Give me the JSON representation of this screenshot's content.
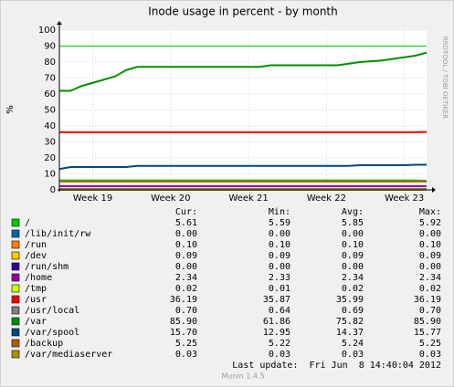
{
  "chart_data": {
    "type": "line",
    "title": "Inode usage in percent - by month",
    "y_label": "%",
    "side_label": "RRDTOOL / TOBI OETIKER",
    "x": [
      0,
      1,
      2,
      3,
      5,
      6,
      7,
      18,
      19,
      25,
      26,
      27,
      29,
      30,
      31,
      32,
      33
    ],
    "xlim": [
      0,
      33
    ],
    "xticks": [
      {
        "value": 3,
        "label": "Week 19"
      },
      {
        "value": 10,
        "label": "Week 20"
      },
      {
        "value": 17,
        "label": "Week 21"
      },
      {
        "value": 24,
        "label": "Week 22"
      },
      {
        "value": 31,
        "label": "Week 23"
      }
    ],
    "ylim": [
      0,
      100
    ],
    "yticks": [
      0,
      10,
      20,
      30,
      40,
      50,
      60,
      70,
      80,
      90,
      100
    ],
    "grid": true,
    "threshold_lines": [
      {
        "value": 90,
        "color": "#00cc00"
      }
    ],
    "stat_headers": [
      "Cur:",
      "Min:",
      "Avg:",
      "Max:"
    ],
    "series": [
      {
        "name": "/",
        "color": "#00cc00",
        "values": [
          5.9,
          5.9,
          5.9,
          5.9,
          5.9,
          5.9,
          5.9,
          5.9,
          5.9,
          5.9,
          5.9,
          5.9,
          5.9,
          5.9,
          5.9,
          5.9,
          5.61
        ],
        "stats": [
          "5.61",
          "5.59",
          "5.85",
          "5.92"
        ]
      },
      {
        "name": "/lib/init/rw",
        "color": "#0066b3",
        "values": [
          0,
          0,
          0,
          0,
          0,
          0,
          0,
          0,
          0,
          0,
          0,
          0,
          0,
          0,
          0,
          0,
          0
        ],
        "stats": [
          "0.00",
          "0.00",
          "0.00",
          "0.00"
        ]
      },
      {
        "name": "/run",
        "color": "#ff8000",
        "values": [
          0.1,
          0.1,
          0.1,
          0.1,
          0.1,
          0.1,
          0.1,
          0.1,
          0.1,
          0.1,
          0.1,
          0.1,
          0.1,
          0.1,
          0.1,
          0.1,
          0.1
        ],
        "stats": [
          "0.10",
          "0.10",
          "0.10",
          "0.10"
        ]
      },
      {
        "name": "/dev",
        "color": "#ffcc00",
        "values": [
          0.09,
          0.09,
          0.09,
          0.09,
          0.09,
          0.09,
          0.09,
          0.09,
          0.09,
          0.09,
          0.09,
          0.09,
          0.09,
          0.09,
          0.09,
          0.09,
          0.09
        ],
        "stats": [
          "0.09",
          "0.09",
          "0.09",
          "0.09"
        ]
      },
      {
        "name": "/run/shm",
        "color": "#330099",
        "values": [
          0,
          0,
          0,
          0,
          0,
          0,
          0,
          0,
          0,
          0,
          0,
          0,
          0,
          0,
          0,
          0,
          0
        ],
        "stats": [
          "0.00",
          "0.00",
          "0.00",
          "0.00"
        ]
      },
      {
        "name": "/home",
        "color": "#990099",
        "values": [
          2.34,
          2.34,
          2.34,
          2.34,
          2.34,
          2.34,
          2.34,
          2.34,
          2.34,
          2.34,
          2.34,
          2.34,
          2.34,
          2.34,
          2.34,
          2.34,
          2.34
        ],
        "stats": [
          "2.34",
          "2.33",
          "2.34",
          "2.34"
        ]
      },
      {
        "name": "/tmp",
        "color": "#ccff00",
        "values": [
          0.02,
          0.02,
          0.02,
          0.02,
          0.02,
          0.02,
          0.02,
          0.02,
          0.02,
          0.02,
          0.02,
          0.02,
          0.02,
          0.02,
          0.02,
          0.02,
          0.02
        ],
        "stats": [
          "0.02",
          "0.01",
          "0.02",
          "0.02"
        ]
      },
      {
        "name": "/usr",
        "color": "#ff0000",
        "values": [
          36.1,
          36.1,
          36.1,
          36.1,
          36.1,
          36.1,
          36.1,
          36.1,
          36.1,
          36.1,
          36.1,
          36.1,
          36.1,
          36.1,
          36.1,
          36.1,
          36.19
        ],
        "stats": [
          "36.19",
          "35.87",
          "35.99",
          "36.19"
        ]
      },
      {
        "name": "/usr/local",
        "color": "#808080",
        "values": [
          0.7,
          0.7,
          0.7,
          0.7,
          0.7,
          0.7,
          0.7,
          0.7,
          0.7,
          0.7,
          0.7,
          0.7,
          0.7,
          0.7,
          0.7,
          0.7,
          0.7
        ],
        "stats": [
          "0.70",
          "0.64",
          "0.69",
          "0.70"
        ]
      },
      {
        "name": "/var",
        "color": "#008f00",
        "values": [
          62,
          62,
          65,
          67,
          71,
          75,
          77,
          77,
          78,
          78,
          79,
          80,
          81,
          82,
          83,
          84,
          85.9
        ],
        "stats": [
          "85.90",
          "61.86",
          "75.82",
          "85.90"
        ]
      },
      {
        "name": "/var/spool",
        "color": "#00487d",
        "values": [
          13,
          14.3,
          14.3,
          14.3,
          14.3,
          14.3,
          15,
          15,
          15,
          15,
          15,
          15.4,
          15.4,
          15.4,
          15.4,
          15.7,
          15.7
        ],
        "stats": [
          "15.70",
          "12.95",
          "14.37",
          "15.77"
        ]
      },
      {
        "name": "/backup",
        "color": "#b35a00",
        "values": [
          5.25,
          5.25,
          5.25,
          5.25,
          5.25,
          5.25,
          5.25,
          5.25,
          5.25,
          5.25,
          5.25,
          5.25,
          5.25,
          5.25,
          5.25,
          5.25,
          5.25
        ],
        "stats": [
          "5.25",
          "5.22",
          "5.24",
          "5.25"
        ]
      },
      {
        "name": "/var/mediaserver",
        "color": "#b38f00",
        "values": [
          0.03,
          0.03,
          0.03,
          0.03,
          0.03,
          0.03,
          0.03,
          0.03,
          0.03,
          0.03,
          0.03,
          0.03,
          0.03,
          0.03,
          0.03,
          0.03,
          0.03
        ],
        "stats": [
          "0.03",
          "0.03",
          "0.03",
          "0.03"
        ]
      }
    ],
    "last_update": "Last update:  Fri Jun  8 14:40:04 2012",
    "version": "Munin 1.4.5"
  }
}
